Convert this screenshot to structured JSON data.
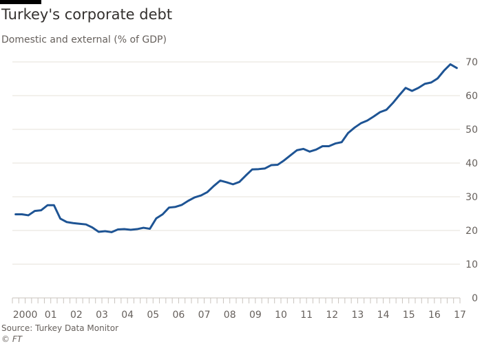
{
  "chart_data": {
    "type": "line",
    "title": "Turkey's corporate debt",
    "subtitle": "Domestic and external (% of GDP)",
    "source": "Source: Turkey Data Monitor",
    "credit": "© FT",
    "ylim": [
      0,
      70
    ],
    "y_ticks": [
      0,
      10,
      20,
      30,
      40,
      50,
      60,
      70
    ],
    "y_axis_side": "right",
    "grid": true,
    "x_tick_labels": [
      "2000",
      "01",
      "02",
      "03",
      "04",
      "05",
      "06",
      "07",
      "08",
      "09",
      "10",
      "11",
      "12",
      "13",
      "14",
      "15",
      "16",
      "17"
    ],
    "frequency": "quarterly",
    "series": [
      {
        "color": "#1e5494",
        "x": [
          "2000-Q1",
          "2000-Q2",
          "2000-Q3",
          "2000-Q4",
          "2001-Q1",
          "2001-Q2",
          "2001-Q3",
          "2001-Q4",
          "2002-Q1",
          "2002-Q2",
          "2002-Q3",
          "2002-Q4",
          "2003-Q1",
          "2003-Q2",
          "2003-Q3",
          "2003-Q4",
          "2004-Q1",
          "2004-Q2",
          "2004-Q3",
          "2004-Q4",
          "2005-Q1",
          "2005-Q2",
          "2005-Q3",
          "2005-Q4",
          "2006-Q1",
          "2006-Q2",
          "2006-Q3",
          "2006-Q4",
          "2007-Q1",
          "2007-Q2",
          "2007-Q3",
          "2007-Q4",
          "2008-Q1",
          "2008-Q2",
          "2008-Q3",
          "2008-Q4",
          "2009-Q1",
          "2009-Q2",
          "2009-Q3",
          "2009-Q4",
          "2010-Q1",
          "2010-Q2",
          "2010-Q3",
          "2010-Q4",
          "2011-Q1",
          "2011-Q2",
          "2011-Q3",
          "2011-Q4",
          "2012-Q1",
          "2012-Q2",
          "2012-Q3",
          "2012-Q4",
          "2013-Q1",
          "2013-Q2",
          "2013-Q3",
          "2013-Q4",
          "2014-Q1",
          "2014-Q2",
          "2014-Q3",
          "2014-Q4",
          "2015-Q1",
          "2015-Q2",
          "2015-Q3",
          "2015-Q4",
          "2016-Q1",
          "2016-Q2",
          "2016-Q3",
          "2016-Q4",
          "2017-Q1",
          "2017-Q2"
        ],
        "values": [
          24.8,
          24.8,
          24.5,
          25.8,
          26.0,
          27.5,
          27.5,
          23.5,
          22.5,
          22.2,
          22.0,
          21.8,
          20.9,
          19.6,
          19.8,
          19.5,
          20.3,
          20.4,
          20.2,
          20.4,
          20.8,
          20.5,
          23.6,
          24.8,
          26.8,
          27.0,
          27.6,
          28.8,
          29.8,
          30.4,
          31.4,
          33.2,
          34.8,
          34.3,
          33.7,
          34.4,
          36.3,
          38.1,
          38.2,
          38.4,
          39.4,
          39.5,
          40.8,
          42.3,
          43.8,
          44.2,
          43.4,
          44.0,
          45.0,
          45.0,
          45.8,
          46.2,
          48.9,
          50.5,
          51.8,
          52.6,
          53.8,
          55.1,
          55.8,
          57.8,
          60.1,
          62.3,
          61.4,
          62.3,
          63.5,
          63.9,
          65.1,
          67.4,
          69.3,
          68.2
        ]
      }
    ]
  }
}
